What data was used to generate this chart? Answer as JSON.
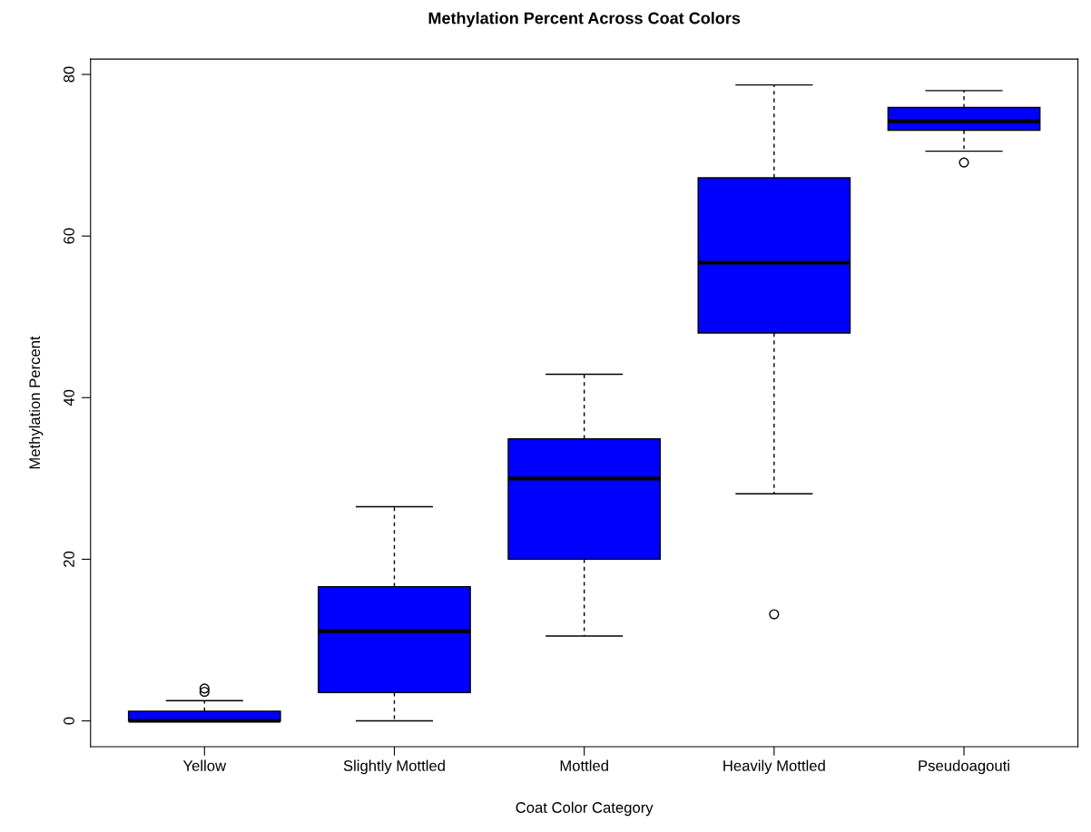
{
  "chart_data": {
    "type": "box",
    "title": "Methylation Percent Across Coat Colors",
    "xlabel": "Coat Color Category",
    "ylabel": "Methylation Percent",
    "categories": [
      "Yellow",
      "Slightly Mottled",
      "Mottled",
      "Heavily Mottled",
      "Pseudoagouti"
    ],
    "color": "#0000ff",
    "boxes": [
      {
        "low": 0,
        "q1": 0,
        "median": 0,
        "q3": 1.2,
        "high": 2.5,
        "outliers": [
          3.6,
          4.0
        ]
      },
      {
        "low": 0,
        "q1": 3.5,
        "median": 11.1,
        "q3": 16.6,
        "high": 26.5
      },
      {
        "low": 10.5,
        "q1": 20.0,
        "median": 30.0,
        "q3": 34.9,
        "high": 42.9
      },
      {
        "low": 28.1,
        "q1": 48.0,
        "median": 56.7,
        "q3": 67.2,
        "high": 78.7,
        "outliers": [
          13.2
        ]
      },
      {
        "low": 70.5,
        "q1": 73.1,
        "median": 74.2,
        "q3": 75.9,
        "high": 78.0,
        "outliers": [
          69.1
        ]
      }
    ],
    "ylim": [
      -3.2,
      81.9
    ],
    "yticks": [
      0,
      20,
      40,
      60,
      80
    ],
    "grid": false
  }
}
